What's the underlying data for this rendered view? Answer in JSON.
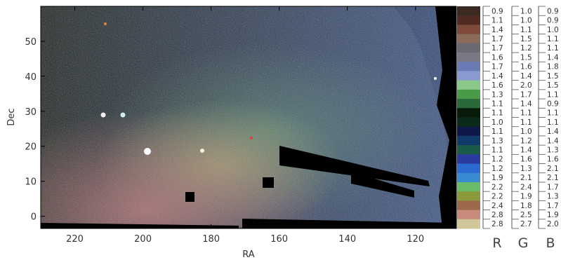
{
  "chart_data": {
    "type": "heatmap",
    "title": "",
    "xlabel": "RA",
    "ylabel": "Dec",
    "xlim": [
      230,
      108
    ],
    "ylim": [
      -3.5,
      60
    ],
    "x_ticks": [
      220,
      200,
      180,
      160,
      140,
      120
    ],
    "y_ticks": [
      0,
      10,
      20,
      30,
      40,
      50
    ],
    "colorbar": {
      "channels": [
        "R",
        "G",
        "B"
      ],
      "rows": [
        [
          "0.9",
          "1.0",
          "0.9"
        ],
        [
          "1.1",
          "1.0",
          "0.9"
        ],
        [
          "1.4",
          "1.1",
          "1.0"
        ],
        [
          "1.7",
          "1.5",
          "1.1"
        ],
        [
          "1.7",
          "1.2",
          "1.1"
        ],
        [
          "1.6",
          "1.5",
          "1.4"
        ],
        [
          "1.7",
          "1.6",
          "1.8"
        ],
        [
          "1.4",
          "1.4",
          "1.5"
        ],
        [
          "1.6",
          "2.0",
          "1.5"
        ],
        [
          "1.3",
          "1.7",
          "1.1"
        ],
        [
          "1.1",
          "1.4",
          "0.9"
        ],
        [
          "1.1",
          "1.1",
          "1.1"
        ],
        [
          "1.0",
          "1.1",
          "1.1"
        ],
        [
          "1.1",
          "1.0",
          "1.4"
        ],
        [
          "1.3",
          "1.2",
          "1.4"
        ],
        [
          "1.1",
          "1.4",
          "1.3"
        ],
        [
          "1.2",
          "1.6",
          "1.6"
        ],
        [
          "1.2",
          "1.3",
          "2.1"
        ],
        [
          "1.9",
          "2.1",
          "2.1"
        ],
        [
          "2.2",
          "2.4",
          "1.7"
        ],
        [
          "2.2",
          "1.9",
          "1.3"
        ],
        [
          "2.4",
          "1.8",
          "1.7"
        ],
        [
          "2.8",
          "2.5",
          "1.9"
        ],
        [
          "2.8",
          "2.7",
          "2.0"
        ]
      ],
      "colors": [
        "#3a2a22",
        "#522a24",
        "#7e4a3a",
        "#8a6a58",
        "#6a6a72",
        "#7a7a86",
        "#6a7ab4",
        "#8a9ad0",
        "#8ac88a",
        "#4a9a4a",
        "#2a6a3a",
        "#0a1a0a",
        "#0a2a1a",
        "#10184a",
        "#103a6a",
        "#1a5a4a",
        "#2a3aa0",
        "#2a6ad0",
        "#3a8ad0",
        "#6aba6a",
        "#8a9a3a",
        "#9a6a4a",
        "#c88a7a",
        "#d0c89a"
      ]
    }
  }
}
